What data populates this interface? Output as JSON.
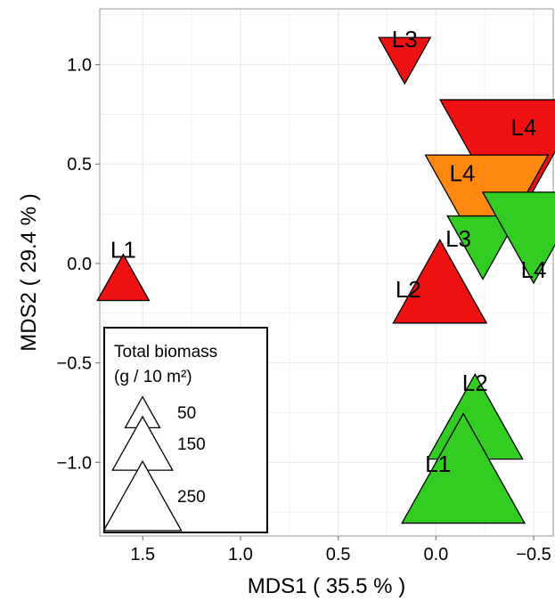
{
  "chart_data": {
    "type": "scatter",
    "title": "",
    "xlabel": "MDS1 ( 35.5 % )",
    "ylabel": "MDS2 ( 29.4 % )",
    "xlim": [
      1.72,
      -0.6
    ],
    "ylim": [
      -1.37,
      1.28
    ],
    "x_reversed": true,
    "x_ticks": [
      1.5,
      1.0,
      0.5,
      0.0,
      -0.5
    ],
    "x_tick_labels": [
      "1.5",
      "1.0",
      "0.5",
      "0.0",
      "−0.5"
    ],
    "y_ticks": [
      1.0,
      0.5,
      0.0,
      -0.5,
      -1.0
    ],
    "y_tick_labels": [
      "1.0",
      "0.5",
      "0.0",
      "−0.5",
      "−1.0"
    ],
    "grid": true,
    "colors": {
      "red": "#ee1111",
      "orange": "#ff8811",
      "green": "#33cc22",
      "panel_border": "#999999",
      "grid_line": "#ebebeb"
    },
    "points": [
      {
        "label": "L1",
        "x": 1.6,
        "y": -0.07,
        "biomass": 40,
        "shape": "triangle-up",
        "color": "red"
      },
      {
        "label": "L2",
        "x": -0.02,
        "y": -0.09,
        "biomass": 130,
        "shape": "triangle-up",
        "color": "red"
      },
      {
        "label": "L3",
        "x": 0.16,
        "y": 1.02,
        "biomass": 40,
        "shape": "triangle-down",
        "color": "red"
      },
      {
        "label": "L4",
        "x": -0.39,
        "y": 0.5,
        "biomass": 310,
        "shape": "triangle-down",
        "color": "red"
      },
      {
        "label": "L4",
        "x": -0.26,
        "y": 0.27,
        "biomass": 225,
        "shape": "triangle-down",
        "color": "orange"
      },
      {
        "label": "L3",
        "x": -0.24,
        "y": 0.08,
        "biomass": 75,
        "shape": "triangle-down",
        "color": "green"
      },
      {
        "label": "L4",
        "x": -0.5,
        "y": 0.13,
        "biomass": 155,
        "shape": "triangle-down",
        "color": "green"
      },
      {
        "label": "L2",
        "x": -0.2,
        "y": -0.77,
        "biomass": 135,
        "shape": "triangle-up",
        "color": "green"
      },
      {
        "label": "L1",
        "x": -0.14,
        "y": -1.03,
        "biomass": 225,
        "shape": "triangle-up",
        "color": "green"
      }
    ],
    "legend": {
      "title_line1": "Total biomass",
      "title_line2": "(g / 10 m²)",
      "placement": "bottom-left",
      "entries": [
        {
          "label": "50",
          "biomass": 50
        },
        {
          "label": "150",
          "biomass": 150
        },
        {
          "label": "250",
          "biomass": 250
        }
      ]
    }
  }
}
